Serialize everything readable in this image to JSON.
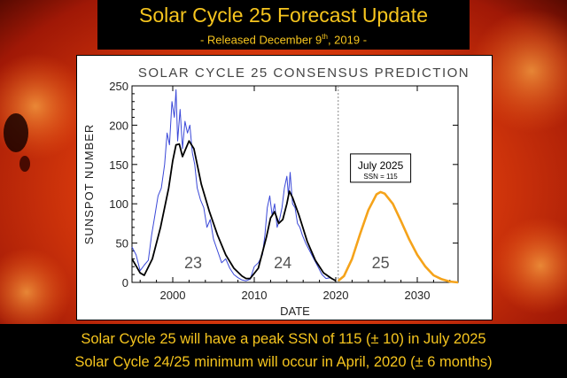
{
  "header": {
    "title": "Solar Cycle 25 Forecast Update",
    "subtitle_pre": "- Released December 9",
    "subtitle_sup": "th",
    "subtitle_post": ", 2019 -"
  },
  "footer": {
    "line1": "Solar Cycle 25 will have a peak SSN of 115 (± 10) in July 2025",
    "line2": "Solar Cycle 24/25 minimum will occur in April, 2020 (± 6 months)"
  },
  "colors": {
    "text_gold": "#f6c51e",
    "observed": "#3a48d8",
    "smoothed": "#000000",
    "prediction": "#f5a31a",
    "background_sun": "#c82a0a"
  },
  "chart_data": {
    "type": "line",
    "title": "SOLAR CYCLE 25 CONSENSUS PREDICTION",
    "xlabel": "DATE",
    "ylabel": "SUNSPOT NUMBER",
    "xlim": [
      1995,
      2035
    ],
    "ylim": [
      0,
      250
    ],
    "x_ticks": [
      2000,
      2010,
      2020,
      2030
    ],
    "y_ticks": [
      0,
      50,
      100,
      150,
      200,
      250
    ],
    "grid": false,
    "legend": "none",
    "cycle_labels": [
      {
        "text": "23",
        "x": 2002.5,
        "y": 20
      },
      {
        "text": "24",
        "x": 2013.5,
        "y": 20
      },
      {
        "text": "25",
        "x": 2025.5,
        "y": 20
      }
    ],
    "annotation": {
      "title": "July 2025",
      "text": "SSN = 115",
      "x": 2025.5,
      "y": 115
    },
    "divider_x": 2020.3,
    "series": [
      {
        "style": "observed-monthly",
        "x": [
          1995.0,
          1995.5,
          1996.0,
          1996.5,
          1997.0,
          1997.4,
          1997.8,
          1998.2,
          1998.6,
          1999.0,
          1999.3,
          1999.6,
          1999.9,
          2000.2,
          2000.4,
          2000.6,
          2000.9,
          2001.2,
          2001.5,
          2001.8,
          2002.1,
          2002.4,
          2002.7,
          2003.0,
          2003.4,
          2003.8,
          2004.2,
          2004.6,
          2005.0,
          2005.5,
          2006.0,
          2006.5,
          2007.0,
          2007.5,
          2008.0,
          2008.5,
          2009.0,
          2009.5,
          2010.0,
          2010.5,
          2011.0,
          2011.3,
          2011.6,
          2011.9,
          2012.2,
          2012.5,
          2012.8,
          2013.1,
          2013.4,
          2013.7,
          2014.0,
          2014.2,
          2014.4,
          2014.7,
          2015.0,
          2015.3,
          2015.6,
          2015.9,
          2016.3,
          2016.8,
          2017.3,
          2017.8,
          2018.3,
          2018.8,
          2019.3,
          2019.8
        ],
        "y": [
          45,
          35,
          15,
          22,
          28,
          60,
          85,
          110,
          120,
          150,
          190,
          175,
          230,
          210,
          245,
          180,
          220,
          170,
          205,
          190,
          200,
          165,
          150,
          120,
          105,
          95,
          70,
          80,
          55,
          40,
          25,
          30,
          18,
          10,
          6,
          3,
          2,
          4,
          20,
          25,
          35,
          60,
          95,
          110,
          85,
          100,
          70,
          80,
          95,
          120,
          135,
          110,
          140,
          100,
          95,
          75,
          70,
          60,
          50,
          40,
          30,
          20,
          10,
          5,
          6,
          3
        ]
      },
      {
        "style": "smoothed",
        "x": [
          1995.0,
          1996.0,
          1996.5,
          1997.5,
          1998.5,
          1999.5,
          2000.0,
          2000.4,
          2000.8,
          2001.2,
          2001.6,
          2002.0,
          2002.6,
          2003.5,
          2004.5,
          2005.5,
          2006.5,
          2007.5,
          2008.5,
          2009.0,
          2009.5,
          2010.5,
          2011.5,
          2012.0,
          2012.5,
          2013.0,
          2013.5,
          2014.0,
          2014.3,
          2014.7,
          2015.5,
          2016.5,
          2017.5,
          2018.5,
          2019.5,
          2020.0
        ],
        "y": [
          30,
          12,
          9,
          30,
          70,
          120,
          155,
          175,
          176,
          160,
          170,
          180,
          170,
          125,
          90,
          60,
          35,
          18,
          8,
          5,
          5,
          18,
          58,
          82,
          90,
          75,
          80,
          100,
          116,
          108,
          85,
          52,
          28,
          12,
          5,
          2
        ]
      },
      {
        "style": "prediction",
        "x": [
          2020.3,
          2021.0,
          2022.0,
          2023.0,
          2024.0,
          2025.0,
          2025.5,
          2026.0,
          2027.0,
          2028.0,
          2029.0,
          2030.0,
          2031.0,
          2032.0,
          2033.0,
          2034.0,
          2035.0
        ],
        "y": [
          2,
          8,
          30,
          62,
          92,
          112,
          115,
          113,
          100,
          78,
          55,
          35,
          20,
          9,
          4,
          1,
          0
        ]
      }
    ]
  }
}
